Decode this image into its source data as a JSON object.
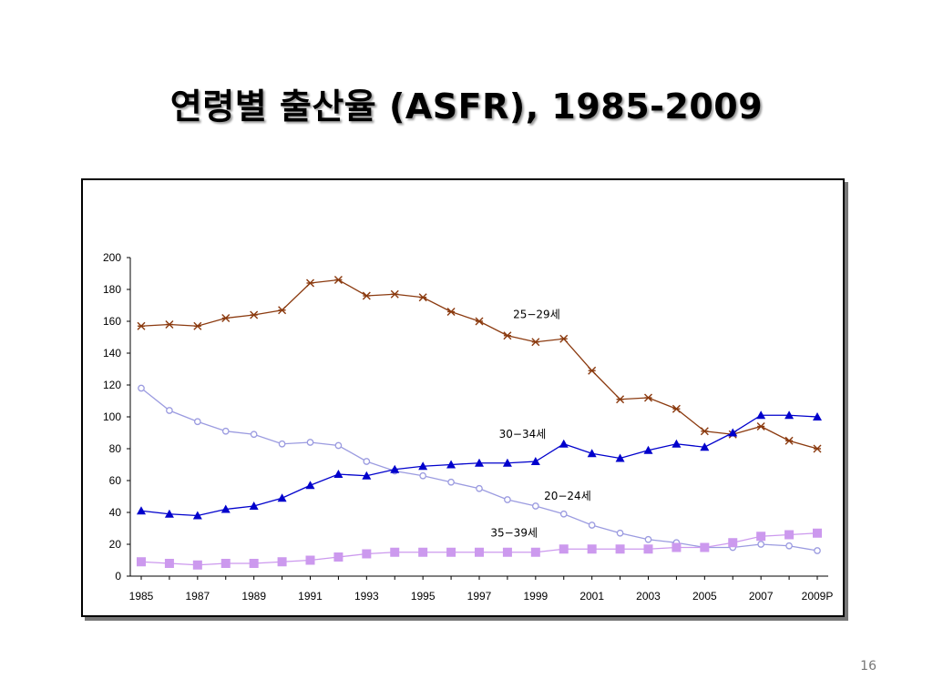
{
  "slide": {
    "title": "연령별 출산율 (ASFR), 1985-2009",
    "page_number": "16"
  },
  "chart_data": {
    "type": "line",
    "title": "",
    "xlabel": "",
    "ylabel": "",
    "x": [
      1985,
      1986,
      1987,
      1988,
      1989,
      1990,
      1991,
      1992,
      1993,
      1994,
      1995,
      1996,
      1997,
      1998,
      1999,
      2000,
      2001,
      2002,
      2003,
      2004,
      2005,
      2006,
      2007,
      2008,
      2009
    ],
    "x_tick_labels": [
      "1985",
      "1987",
      "1989",
      "1991",
      "1993",
      "1995",
      "1997",
      "1999",
      "2001",
      "2003",
      "2005",
      "2007",
      "2009P"
    ],
    "ylim": [
      0,
      200
    ],
    "y_ticks": [
      0,
      20,
      40,
      60,
      80,
      100,
      120,
      140,
      160,
      180,
      200
    ],
    "grid": false,
    "legend": "none (series labelled inline)",
    "series": [
      {
        "name": "25-29세",
        "color": "#8B3A0F",
        "marker": "asterisk",
        "values": [
          157,
          158,
          157,
          162,
          164,
          167,
          184,
          186,
          176,
          177,
          175,
          166,
          160,
          151,
          147,
          149,
          129,
          111,
          112,
          105,
          91,
          89,
          94,
          85,
          80
        ]
      },
      {
        "name": "20-24세",
        "color": "#9B9BE0",
        "marker": "open-circle",
        "values": [
          118,
          104,
          97,
          91,
          89,
          83,
          84,
          82,
          72,
          66,
          63,
          59,
          55,
          48,
          44,
          39,
          32,
          27,
          23,
          21,
          18,
          18,
          20,
          19,
          16
        ]
      },
      {
        "name": "30-34세",
        "color": "#0000CC",
        "marker": "triangle",
        "values": [
          41,
          39,
          38,
          42,
          44,
          49,
          57,
          64,
          63,
          67,
          69,
          70,
          71,
          71,
          72,
          83,
          77,
          74,
          79,
          83,
          81,
          90,
          101,
          101,
          100
        ]
      },
      {
        "name": "35-39세",
        "color": "#CC99EE",
        "marker": "square",
        "values": [
          9,
          8,
          7,
          8,
          8,
          9,
          10,
          12,
          14,
          15,
          15,
          15,
          15,
          15,
          15,
          17,
          17,
          17,
          17,
          18,
          18,
          21,
          25,
          26,
          27
        ]
      }
    ],
    "annotations": [
      {
        "text": "25−29세",
        "series": "25-29세"
      },
      {
        "text": "30−34세",
        "series": "30-34세"
      },
      {
        "text": "20−24세",
        "series": "20-24세"
      },
      {
        "text": "35−39세",
        "series": "35-39세"
      }
    ]
  }
}
